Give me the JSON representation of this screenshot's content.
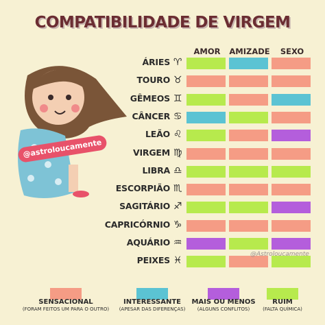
{
  "title": "COMPATIBILIDADE DE VIRGEM",
  "columns": [
    "AMOR",
    "AMIZADE",
    "SEXO"
  ],
  "handle": "@astroloucamente",
  "watermark": "@Astroloucamente",
  "colors": {
    "sensacional": "#f59c85",
    "interessante": "#5bc3d3",
    "mais_ou_menos": "#b45edc",
    "ruim": "#b7ea4d"
  },
  "rows": [
    {
      "sign": "ÁRIES",
      "symbol": "♈",
      "values": [
        "ruim",
        "interessante",
        "sensacional"
      ]
    },
    {
      "sign": "TOURO",
      "symbol": "♉",
      "values": [
        "sensacional",
        "sensacional",
        "sensacional"
      ]
    },
    {
      "sign": "GÊMEOS",
      "symbol": "♊",
      "values": [
        "ruim",
        "sensacional",
        "interessante"
      ]
    },
    {
      "sign": "CÂNCER",
      "symbol": "♋",
      "values": [
        "interessante",
        "ruim",
        "sensacional"
      ]
    },
    {
      "sign": "LEÃO",
      "symbol": "♌",
      "values": [
        "ruim",
        "sensacional",
        "mais_ou_menos"
      ]
    },
    {
      "sign": "VIRGEM",
      "symbol": "♍",
      "values": [
        "sensacional",
        "sensacional",
        "sensacional"
      ]
    },
    {
      "sign": "LIBRA",
      "symbol": "♎",
      "values": [
        "ruim",
        "ruim",
        "ruim"
      ]
    },
    {
      "sign": "ESCORPIÃO",
      "symbol": "♏",
      "values": [
        "sensacional",
        "sensacional",
        "sensacional"
      ]
    },
    {
      "sign": "SAGITÁRIO",
      "symbol": "♐",
      "values": [
        "ruim",
        "ruim",
        "mais_ou_menos"
      ]
    },
    {
      "sign": "CAPRICÓRNIO",
      "symbol": "♑",
      "values": [
        "sensacional",
        "sensacional",
        "sensacional"
      ]
    },
    {
      "sign": "AQUÁRIO",
      "symbol": "♒",
      "values": [
        "mais_ou_menos",
        "ruim",
        "mais_ou_menos"
      ]
    },
    {
      "sign": "PEIXES",
      "symbol": "♓",
      "values": [
        "ruim",
        "sensacional",
        "ruim"
      ]
    }
  ],
  "legend": [
    {
      "key": "sensacional",
      "label": "SENSACIONAL",
      "sub": "(FORAM FEITOS UM PARA O OUTRO)"
    },
    {
      "key": "interessante",
      "label": "INTERESSANTE",
      "sub": "(APESAR DAS DIFERENÇAS)"
    },
    {
      "key": "mais_ou_menos",
      "label": "MAIS OU MENOS",
      "sub": "(ALGUNS CONFLITOS)"
    },
    {
      "key": "ruim",
      "label": "RUIM",
      "sub": "(FALTA QUÍMICA)"
    }
  ]
}
